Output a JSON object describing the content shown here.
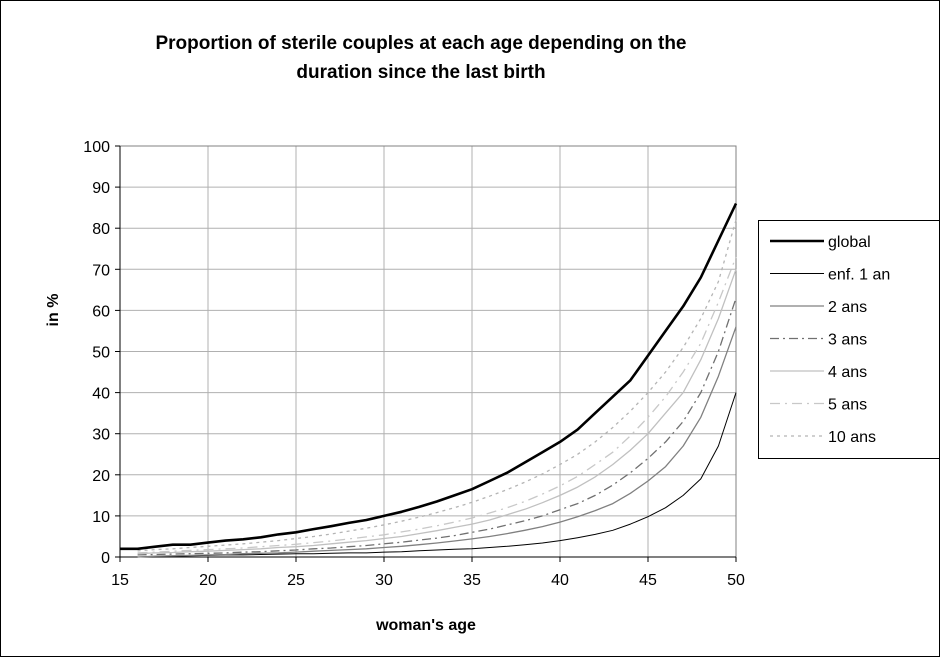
{
  "chart_data": {
    "type": "line",
    "title_line1": "Proportion of sterile couples at each age depending on the",
    "title_line2": "duration since the last birth",
    "xlabel": "woman's age",
    "ylabel": "in %",
    "xlim": [
      15,
      50
    ],
    "ylim": [
      0,
      100
    ],
    "xticks": [
      "15",
      "20",
      "25",
      "30",
      "35",
      "40",
      "45",
      "50"
    ],
    "yticks": [
      "0",
      "10",
      "20",
      "30",
      "40",
      "50",
      "60",
      "70",
      "80",
      "90",
      "100"
    ],
    "grid": true,
    "legend_position": "right",
    "x": [
      15,
      16,
      17,
      18,
      19,
      20,
      21,
      22,
      23,
      24,
      25,
      26,
      27,
      28,
      29,
      30,
      31,
      32,
      33,
      34,
      35,
      36,
      37,
      38,
      39,
      40,
      41,
      42,
      43,
      44,
      45,
      46,
      47,
      48,
      49,
      50
    ],
    "series": [
      {
        "name": "global",
        "color": "#000000",
        "width": 2.6,
        "dash": "",
        "values": [
          2,
          2,
          2.5,
          3,
          3,
          3.5,
          4,
          4.3,
          4.8,
          5.5,
          6,
          6.8,
          7.5,
          8.3,
          9,
          10,
          11,
          12.2,
          13.5,
          15,
          16.5,
          18.5,
          20.5,
          23,
          25.5,
          28,
          31,
          35,
          39,
          43,
          49,
          55,
          61,
          68,
          77,
          86
        ]
      },
      {
        "name": "enf. 1 an",
        "color": "#000000",
        "width": 1,
        "dash": "",
        "values": [
          null,
          0,
          0.1,
          0.2,
          0.3,
          0.4,
          0.5,
          0.5,
          0.6,
          0.7,
          0.8,
          0.8,
          0.9,
          1,
          1,
          1.2,
          1.3,
          1.5,
          1.7,
          1.9,
          2,
          2.3,
          2.6,
          3,
          3.4,
          4,
          4.7,
          5.5,
          6.5,
          8,
          9.8,
          12,
          15,
          19,
          27,
          40
        ]
      },
      {
        "name": "2 ans",
        "color": "#808080",
        "width": 1.3,
        "dash": "",
        "values": [
          null,
          0,
          0.2,
          0.3,
          0.4,
          0.5,
          0.6,
          0.8,
          0.9,
          1,
          1.2,
          1.4,
          1.6,
          1.8,
          2,
          2.3,
          2.6,
          3,
          3.4,
          3.9,
          4.4,
          5,
          5.7,
          6.5,
          7.4,
          8.5,
          9.8,
          11.3,
          13,
          15.5,
          18.5,
          22,
          27,
          34,
          44,
          56
        ]
      },
      {
        "name": "3 ans",
        "color": "#707070",
        "width": 1.3,
        "dash": "9,4,2,4",
        "values": [
          null,
          0.5,
          0.6,
          0.7,
          0.8,
          0.9,
          1,
          1.2,
          1.3,
          1.5,
          1.7,
          2,
          2.2,
          2.5,
          2.8,
          3.2,
          3.6,
          4.1,
          4.6,
          5.2,
          6,
          6.8,
          7.8,
          8.8,
          10,
          11.5,
          13,
          15,
          17.5,
          20.5,
          24,
          28,
          33,
          40,
          50,
          63
        ]
      },
      {
        "name": "4 ans",
        "color": "#c0c0c0",
        "width": 1.3,
        "dash": "",
        "values": [
          null,
          0.8,
          1,
          1.1,
          1.3,
          1.4,
          1.6,
          1.8,
          2,
          2.3,
          2.5,
          2.8,
          3.2,
          3.6,
          4,
          4.5,
          5,
          5.7,
          6.4,
          7.2,
          8,
          9,
          10.3,
          11.6,
          13.2,
          15,
          17,
          19.5,
          22.5,
          26,
          30,
          35,
          40,
          48,
          58,
          70
        ]
      },
      {
        "name": "5 ans",
        "color": "#c8c8c8",
        "width": 1.3,
        "dash": "10,5,2,5",
        "values": [
          null,
          1,
          1.2,
          1.4,
          1.6,
          1.8,
          2,
          2.2,
          2.5,
          2.8,
          3.1,
          3.5,
          3.9,
          4.4,
          4.9,
          5.4,
          6.1,
          6.8,
          7.6,
          8.5,
          9.5,
          10.7,
          12,
          13.5,
          15.3,
          17.3,
          19.6,
          22.5,
          25.5,
          29.5,
          34,
          39,
          45,
          52,
          62,
          73
        ]
      },
      {
        "name": "10 ans",
        "color": "#b4b4b4",
        "width": 1.3,
        "dash": "3,4",
        "values": [
          null,
          1.5,
          1.8,
          2,
          2.3,
          2.6,
          2.9,
          3.2,
          3.6,
          4,
          4.5,
          5,
          5.6,
          6.3,
          7,
          7.8,
          8.7,
          9.7,
          10.8,
          12,
          13.3,
          14.8,
          16.4,
          18.2,
          20.2,
          22.5,
          25,
          28,
          31.5,
          35.5,
          40,
          45,
          51,
          58,
          67,
          82
        ]
      }
    ]
  }
}
